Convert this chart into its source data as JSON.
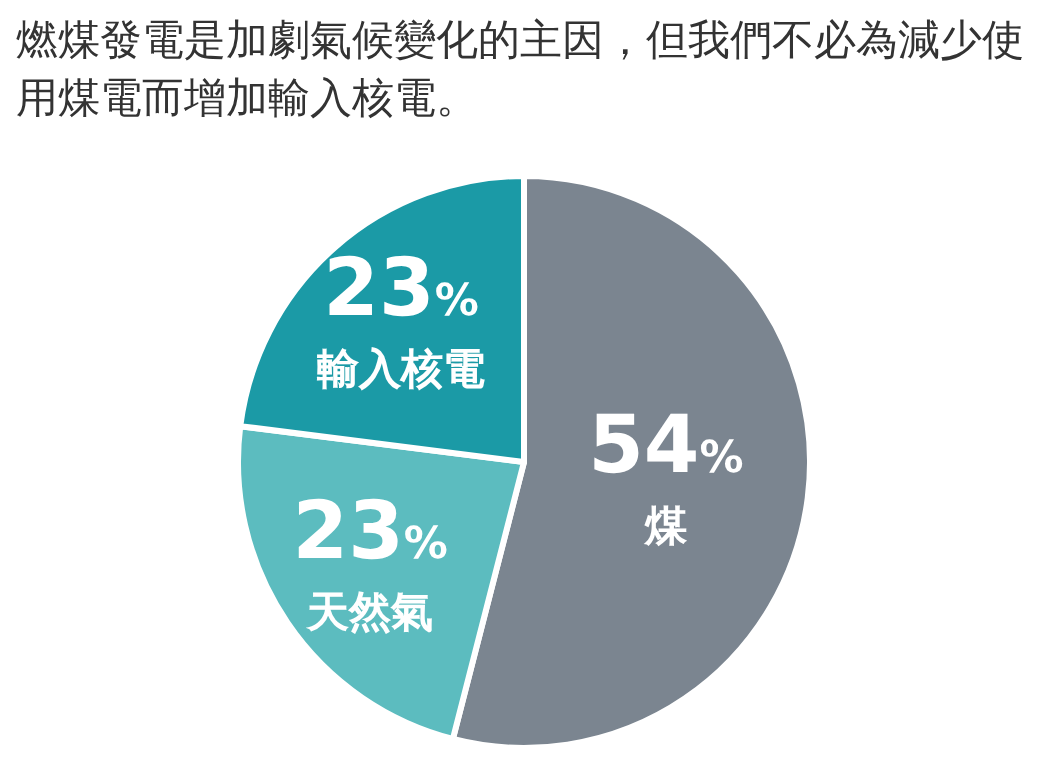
{
  "chart_data": {
    "type": "pie",
    "title": "燃煤發電是加劇氣候變化的主因，但我們不必為減少使用煤電而增加輸入核電。",
    "categories": [
      "煤",
      "天然氣",
      "輸入核電"
    ],
    "values": [
      54,
      23,
      23
    ],
    "colors": [
      "#7b8590",
      "#5cbcbf",
      "#1b9aa6"
    ],
    "value_labels": [
      "54%",
      "23%",
      "23%"
    ]
  }
}
